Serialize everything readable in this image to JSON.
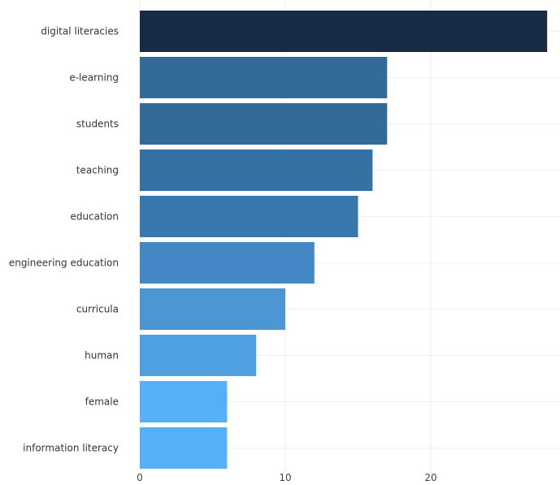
{
  "chart_data": {
    "type": "bar",
    "orientation": "horizontal",
    "categories": [
      "digital literacies",
      "e-learning",
      "students",
      "teaching",
      "education",
      "engineering education",
      "curricula",
      "human",
      "female",
      "information literacy"
    ],
    "values": [
      28,
      17,
      17,
      16,
      15,
      12,
      10,
      8,
      6,
      6
    ],
    "bar_colors": [
      "#172b45",
      "#326a98",
      "#326a98",
      "#3571a3",
      "#3877ad",
      "#4387c4",
      "#4c97d3",
      "#4fa0e0",
      "#55b0f7",
      "#55b0f7"
    ],
    "x_ticks": [
      0,
      10,
      20
    ],
    "xlim": [
      0,
      28.5
    ],
    "title": "",
    "xlabel": "",
    "ylabel": "",
    "grid": true,
    "legend": "none"
  }
}
